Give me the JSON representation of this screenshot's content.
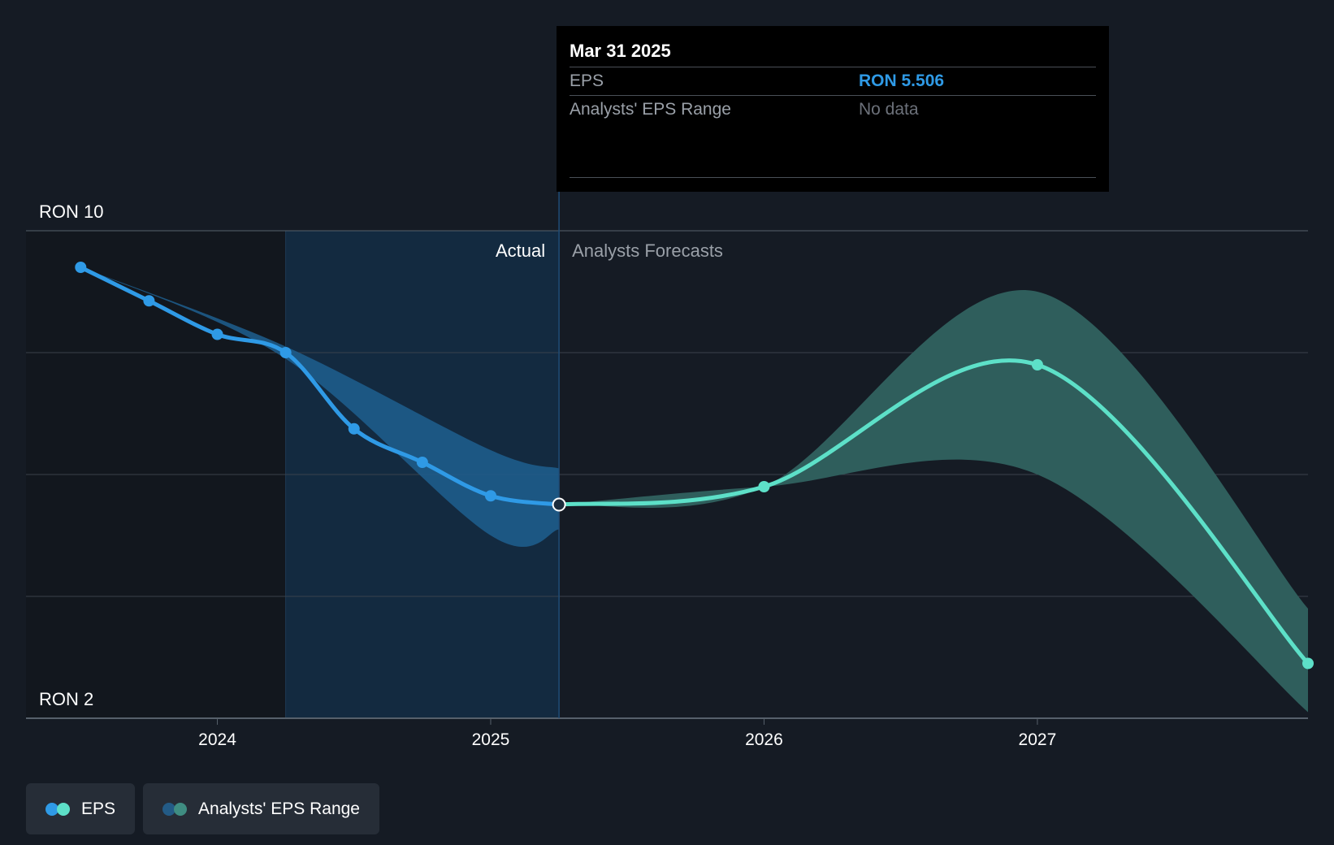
{
  "tooltip": {
    "date": "Mar 31 2025",
    "rows": [
      {
        "label": "EPS",
        "value": "RON 5.506"
      },
      {
        "label": "Analysts' EPS Range",
        "value": "No data"
      }
    ]
  },
  "labels": {
    "actual": "Actual",
    "forecast": "Analysts Forecasts"
  },
  "legend": [
    {
      "label": "EPS",
      "colors": [
        "#2f9ae6",
        "#5de0c8"
      ]
    },
    {
      "label": "Analysts' EPS Range",
      "colors": [
        "#235b86",
        "#3f8d82"
      ]
    }
  ],
  "colors": {
    "eps_actual": "#2f9ae6",
    "eps_forecast": "#5de0c8",
    "range_actual": "#1f5f8f",
    "range_forecast": "#2f5e5c",
    "highlight": "#132a40",
    "grid": "#3a414b"
  },
  "chart_data": {
    "type": "line",
    "title": "",
    "xlabel": "",
    "ylabel": "",
    "ylim": [
      2,
      10
    ],
    "xlim": [
      2023.3,
      2027.99
    ],
    "y_tick_labels": [
      {
        "value": 10,
        "label": "RON 10"
      },
      {
        "value": 2,
        "label": "RON 2"
      }
    ],
    "x_ticks": [
      {
        "value": 2024.0,
        "label": "2024"
      },
      {
        "value": 2025.0,
        "label": "2025"
      },
      {
        "value": 2026.0,
        "label": "2026"
      },
      {
        "value": 2027.0,
        "label": "2027"
      }
    ],
    "y_gridlines": [
      10,
      8,
      6,
      4,
      2
    ],
    "highlight_range": [
      2024.25,
      2025.25
    ],
    "divider_x": 2025.25,
    "series": [
      {
        "name": "EPS",
        "kind": "actual",
        "x": [
          2023.5,
          2023.75,
          2024.0,
          2024.25,
          2024.5,
          2024.75,
          2025.0,
          2025.25
        ],
        "values": [
          9.4,
          8.85,
          8.3,
          8.0,
          6.75,
          6.2,
          5.65,
          5.506
        ]
      },
      {
        "name": "EPS",
        "kind": "forecast",
        "x": [
          2025.25,
          2026.0,
          2027.0,
          2027.99
        ],
        "values": [
          5.506,
          5.8,
          7.8,
          2.9
        ]
      }
    ],
    "ranges": [
      {
        "name": "Analysts' EPS Range",
        "kind": "actual",
        "x": [
          2023.5,
          2024.25,
          2025.0,
          2025.25
        ],
        "low": [
          9.4,
          7.9,
          5.0,
          5.1
        ],
        "high": [
          9.4,
          8.1,
          6.4,
          6.1
        ]
      },
      {
        "name": "Analysts' EPS Range",
        "kind": "forecast",
        "x": [
          2025.25,
          2026.0,
          2027.0,
          2027.99
        ],
        "low": [
          5.506,
          5.8,
          6.0,
          2.1
        ],
        "high": [
          5.506,
          5.8,
          9.0,
          3.8
        ]
      }
    ]
  }
}
